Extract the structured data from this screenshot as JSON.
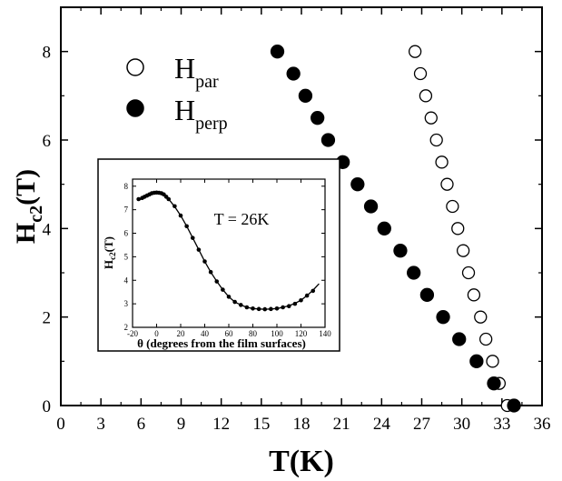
{
  "chart_data": [
    {
      "type": "scatter",
      "xlabel": "T(K)",
      "ylabel_main": "H",
      "ylabel_sub": "c2",
      "ylabel_tail": "(T)",
      "xlim": [
        0,
        36
      ],
      "ylim": [
        0,
        9
      ],
      "xticks": [
        0,
        3,
        6,
        9,
        12,
        15,
        18,
        21,
        24,
        27,
        30,
        33,
        36
      ],
      "yticks": [
        0,
        2,
        4,
        6,
        8
      ],
      "xtick_labels": [
        "0",
        "3",
        "6",
        "9",
        "12",
        "15",
        "18",
        "21",
        "24",
        "27",
        "30",
        "33",
        "36"
      ],
      "ytick_labels": [
        "0",
        "2",
        "4",
        "6",
        "8"
      ],
      "legend_position": "top-left",
      "series": [
        {
          "name_main": "H",
          "name_sub": "par",
          "marker": "open-circle",
          "x": [
            26.5,
            26.9,
            27.3,
            27.7,
            28.1,
            28.5,
            28.9,
            29.3,
            29.7,
            30.1,
            30.5,
            30.9,
            31.4,
            31.8,
            32.3,
            32.8,
            33.4
          ],
          "y": [
            8.0,
            7.5,
            7.0,
            6.5,
            6.0,
            5.5,
            5.0,
            4.5,
            4.0,
            3.5,
            3.0,
            2.5,
            2.0,
            1.5,
            1.0,
            0.5,
            0.0
          ]
        },
        {
          "name_main": "H",
          "name_sub": "perp",
          "marker": "filled-circle",
          "x": [
            16.2,
            17.4,
            18.3,
            19.2,
            20.0,
            21.1,
            22.2,
            23.2,
            24.2,
            25.4,
            26.4,
            27.4,
            28.6,
            29.8,
            31.1,
            32.4,
            33.9
          ],
          "y": [
            8.0,
            7.5,
            7.0,
            6.5,
            6.0,
            5.5,
            5.0,
            4.5,
            4.0,
            3.5,
            3.0,
            2.5,
            2.0,
            1.5,
            1.0,
            0.5,
            0.0
          ]
        }
      ]
    },
    {
      "type": "scatter",
      "annotation": "T = 26K",
      "xlabel": "θ (degrees from the film surfaces)",
      "ylabel_main": "H",
      "ylabel_sub": "c2",
      "ylabel_tail": "(T)",
      "xlim": [
        -20,
        140
      ],
      "ylim": [
        2,
        8.3
      ],
      "xticks": [
        -20,
        0,
        20,
        40,
        60,
        80,
        100,
        120,
        140
      ],
      "yticks": [
        2,
        3,
        4,
        5,
        6,
        7,
        8
      ],
      "xtick_labels": [
        "-20",
        "0",
        "20",
        "40",
        "60",
        "80",
        "100",
        "120",
        "140"
      ],
      "ytick_labels": [
        "2",
        "3",
        "4",
        "5",
        "6",
        "7",
        "8"
      ],
      "points": {
        "x": [
          -15,
          -12,
          -10,
          -8,
          -6,
          -4,
          -2,
          0,
          2,
          4,
          6,
          8,
          10,
          15,
          20,
          25,
          30,
          35,
          40,
          45,
          50,
          55,
          60,
          65,
          70,
          75,
          80,
          85,
          90,
          95,
          100,
          105,
          110,
          115,
          120,
          125,
          130
        ],
        "y": [
          7.45,
          7.5,
          7.55,
          7.6,
          7.65,
          7.7,
          7.72,
          7.73,
          7.72,
          7.7,
          7.65,
          7.55,
          7.45,
          7.15,
          6.75,
          6.3,
          5.8,
          5.3,
          4.8,
          4.35,
          3.95,
          3.6,
          3.3,
          3.08,
          2.95,
          2.85,
          2.8,
          2.78,
          2.77,
          2.78,
          2.8,
          2.85,
          2.9,
          3.0,
          3.15,
          3.35,
          3.55
        ]
      },
      "fit_line": {
        "x": [
          -15,
          -10,
          -5,
          0,
          5,
          10,
          15,
          20,
          25,
          30,
          35,
          40,
          45,
          50,
          55,
          60,
          65,
          70,
          75,
          80,
          85,
          90,
          95,
          100,
          105,
          110,
          115,
          120,
          125,
          130,
          135
        ],
        "y": [
          7.4,
          7.52,
          7.65,
          7.72,
          7.68,
          7.45,
          7.13,
          6.75,
          6.3,
          5.8,
          5.3,
          4.8,
          4.35,
          3.95,
          3.6,
          3.3,
          3.08,
          2.95,
          2.85,
          2.8,
          2.78,
          2.77,
          2.78,
          2.8,
          2.85,
          2.92,
          3.02,
          3.15,
          3.35,
          3.58,
          3.85
        ]
      }
    }
  ]
}
